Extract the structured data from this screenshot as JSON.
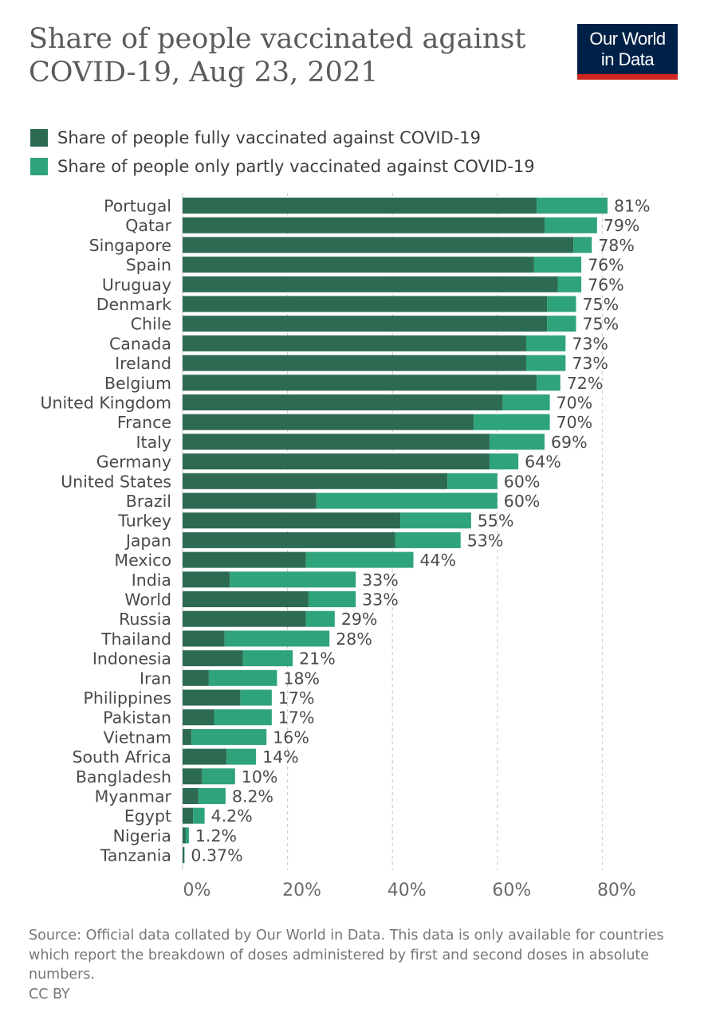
{
  "title": "Share of people vaccinated against COVID-19, Aug 23, 2021",
  "logo": {
    "line1": "Our World",
    "line2": "in Data"
  },
  "colors": {
    "fully": "#2d6a52",
    "partly": "#2fa37a",
    "label": "#4a4a4a",
    "grid": "#cfcfcf"
  },
  "legend": {
    "fully": "Share of people fully vaccinated against COVID-19",
    "partly": "Share of people only partly vaccinated against COVID-19"
  },
  "source": "Source: Official data collated by Our World in Data. This data is only available for countries which report the breakdown of doses administered by first and second doses in absolute numbers.",
  "license": "CC BY",
  "chart_data": {
    "type": "bar",
    "orientation": "horizontal",
    "stacked": true,
    "title": "Share of people vaccinated against COVID-19, Aug 23, 2021",
    "xlim": [
      0,
      80
    ],
    "x_ticks": [
      "0%",
      "20%",
      "40%",
      "60%",
      "80%"
    ],
    "categories": [
      "Portugal",
      "Qatar",
      "Singapore",
      "Spain",
      "Uruguay",
      "Denmark",
      "Chile",
      "Canada",
      "Ireland",
      "Belgium",
      "United Kingdom",
      "France",
      "Italy",
      "Germany",
      "United States",
      "Brazil",
      "Turkey",
      "Japan",
      "Mexico",
      "India",
      "World",
      "Russia",
      "Thailand",
      "Indonesia",
      "Iran",
      "Philippines",
      "Pakistan",
      "Vietnam",
      "South Africa",
      "Bangladesh",
      "Myanmar",
      "Egypt",
      "Nigeria",
      "Tanzania"
    ],
    "series": [
      {
        "name": "Share of people fully vaccinated against COVID-19",
        "values": [
          67.5,
          69,
          74.5,
          67,
          71.5,
          69.5,
          69.5,
          65.5,
          65.5,
          67.5,
          61,
          55.5,
          58.5,
          58.5,
          50.5,
          25.5,
          41.5,
          40.5,
          23.5,
          9,
          24,
          23.5,
          8,
          11.5,
          5,
          11,
          6,
          1.7,
          8.4,
          3.7,
          3,
          2,
          0.6,
          0.3
        ]
      },
      {
        "name": "Share of people only partly vaccinated against COVID-19",
        "values": [
          13.5,
          10,
          3.5,
          9,
          4.5,
          5.5,
          5.5,
          7.5,
          7.5,
          4.5,
          9,
          14.5,
          10.5,
          5.5,
          9.5,
          34.5,
          13.5,
          12.5,
          20.5,
          24,
          9,
          5.5,
          20,
          9.5,
          13,
          6,
          11,
          14.3,
          5.6,
          6.3,
          5.2,
          2.2,
          0.6,
          0.07
        ]
      }
    ],
    "totals": [
      81,
      79,
      78,
      76,
      76,
      75,
      75,
      73,
      73,
      72,
      70,
      70,
      69,
      64,
      60,
      60,
      55,
      53,
      44,
      33,
      33,
      29,
      28,
      21,
      18,
      17,
      17,
      16,
      14,
      10,
      8.2,
      4.2,
      1.2,
      0.37
    ],
    "total_labels": [
      "81%",
      "79%",
      "78%",
      "76%",
      "76%",
      "75%",
      "75%",
      "73%",
      "73%",
      "72%",
      "70%",
      "70%",
      "69%",
      "64%",
      "60%",
      "60%",
      "55%",
      "53%",
      "44%",
      "33%",
      "33%",
      "29%",
      "28%",
      "21%",
      "18%",
      "17%",
      "17%",
      "16%",
      "14%",
      "10%",
      "8.2%",
      "4.2%",
      "1.2%",
      "0.37%"
    ],
    "grid": true
  }
}
